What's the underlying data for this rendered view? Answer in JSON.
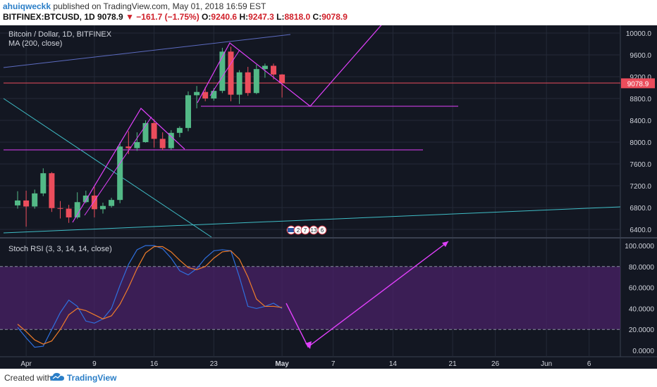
{
  "header": {
    "username": "ahuiqweckk",
    "published_text": "published on TradingView.com, May 01, 2018 16:59 EST",
    "symbol": "BITFINEX:BTCUSD, 1D",
    "last": "9078.9",
    "arrow": "▼",
    "change": "−161.7 (−1.75%)",
    "o_label": "O:",
    "o_val": "9240.6",
    "h_label": "H:",
    "h_val": "9247.3",
    "l_label": "L:",
    "l_val": "8818.0",
    "c_label": "C:",
    "c_val": "9078.9"
  },
  "footer": {
    "created_with": "Created with",
    "brand": "TradingView"
  },
  "colors": {
    "up": "#53b987",
    "down": "#eb4d5c",
    "bg": "#131722",
    "grid": "#242a38",
    "magenta": "#e040fb",
    "teal": "#3fbdc6",
    "blue_line": "#5c6bc0",
    "stoch_k": "#2f6fde",
    "stoch_d": "#ef7c2a",
    "band": "#4a2167"
  },
  "chart_data": [
    {
      "type": "candlestick",
      "title": "Bitcoin / Dollar, 1D, BITFINEX",
      "indicator": "MA (200, close)",
      "x_tick_labels": [
        "Apr",
        "9",
        "16",
        "23",
        "May",
        "7",
        "14",
        "21",
        "26",
        "Jun",
        "6"
      ],
      "y_tick_labels": [
        "10000.0",
        "9600.0",
        "9200.0",
        "8800.0",
        "8400.0",
        "8000.0",
        "7600.0",
        "7200.0",
        "6800.0",
        "6400.0"
      ],
      "ylim": [
        6250,
        10150
      ],
      "last_price_label": "9078.9",
      "event_badges": [
        "2",
        "7",
        "13",
        "6"
      ],
      "candles": [
        {
          "date": "2018-03-31",
          "o": 6840,
          "h": 7100,
          "l": 6780,
          "c": 6930
        },
        {
          "date": "2018-04-01",
          "o": 6930,
          "h": 7110,
          "l": 6450,
          "c": 6820
        },
        {
          "date": "2018-04-02",
          "o": 6820,
          "h": 7130,
          "l": 6780,
          "c": 7060
        },
        {
          "date": "2018-04-03",
          "o": 7060,
          "h": 7520,
          "l": 7010,
          "c": 7430
        },
        {
          "date": "2018-04-04",
          "o": 7430,
          "h": 7450,
          "l": 6720,
          "c": 6790
        },
        {
          "date": "2018-04-05",
          "o": 6790,
          "h": 6920,
          "l": 6600,
          "c": 6780
        },
        {
          "date": "2018-04-06",
          "o": 6780,
          "h": 6850,
          "l": 6520,
          "c": 6620
        },
        {
          "date": "2018-04-07",
          "o": 6620,
          "h": 7080,
          "l": 6590,
          "c": 6900
        },
        {
          "date": "2018-04-08",
          "o": 6900,
          "h": 7110,
          "l": 6880,
          "c": 7020
        },
        {
          "date": "2018-04-09",
          "o": 7020,
          "h": 7180,
          "l": 6620,
          "c": 6770
        },
        {
          "date": "2018-04-10",
          "o": 6770,
          "h": 6890,
          "l": 6690,
          "c": 6830
        },
        {
          "date": "2018-04-11",
          "o": 6830,
          "h": 6980,
          "l": 6800,
          "c": 6940
        },
        {
          "date": "2018-04-12",
          "o": 6940,
          "h": 8000,
          "l": 6880,
          "c": 7920
        },
        {
          "date": "2018-04-13",
          "o": 7920,
          "h": 8200,
          "l": 7780,
          "c": 7890
        },
        {
          "date": "2018-04-14",
          "o": 7890,
          "h": 8180,
          "l": 7840,
          "c": 8000
        },
        {
          "date": "2018-04-15",
          "o": 8000,
          "h": 8400,
          "l": 7990,
          "c": 8350
        },
        {
          "date": "2018-04-16",
          "o": 8350,
          "h": 8420,
          "l": 7900,
          "c": 8060
        },
        {
          "date": "2018-04-17",
          "o": 8060,
          "h": 8180,
          "l": 7850,
          "c": 7890
        },
        {
          "date": "2018-04-18",
          "o": 7890,
          "h": 8220,
          "l": 7860,
          "c": 8170
        },
        {
          "date": "2018-04-19",
          "o": 8170,
          "h": 8290,
          "l": 8090,
          "c": 8260
        },
        {
          "date": "2018-04-20",
          "o": 8260,
          "h": 8930,
          "l": 8200,
          "c": 8860
        },
        {
          "date": "2018-04-21",
          "o": 8860,
          "h": 9030,
          "l": 8620,
          "c": 8920
        },
        {
          "date": "2018-04-22",
          "o": 8920,
          "h": 9010,
          "l": 8750,
          "c": 8800
        },
        {
          "date": "2018-04-23",
          "o": 8800,
          "h": 8990,
          "l": 8760,
          "c": 8940
        },
        {
          "date": "2018-04-24",
          "o": 8940,
          "h": 9730,
          "l": 8900,
          "c": 9660
        },
        {
          "date": "2018-04-25",
          "o": 9660,
          "h": 9750,
          "l": 8750,
          "c": 8870
        },
        {
          "date": "2018-04-26",
          "o": 8870,
          "h": 9320,
          "l": 8700,
          "c": 9280
        },
        {
          "date": "2018-04-27",
          "o": 9280,
          "h": 9380,
          "l": 8850,
          "c": 8900
        },
        {
          "date": "2018-04-28",
          "o": 8900,
          "h": 9420,
          "l": 8880,
          "c": 9340
        },
        {
          "date": "2018-04-29",
          "o": 9340,
          "h": 9440,
          "l": 9180,
          "c": 9400
        },
        {
          "date": "2018-04-30",
          "o": 9400,
          "h": 9440,
          "l": 9150,
          "c": 9240
        },
        {
          "date": "2018-05-01",
          "o": 9240.6,
          "h": 9247.3,
          "l": 8818.0,
          "c": 9078.9
        }
      ]
    },
    {
      "type": "line",
      "title": "Stoch RSI (3, 3, 14, 14, close)",
      "y_tick_labels": [
        "100.0000",
        "80.0000",
        "60.0000",
        "40.0000",
        "20.0000",
        "0.0000"
      ],
      "ylim": [
        -5,
        103
      ],
      "band": [
        20,
        80
      ],
      "series": [
        {
          "values": [
            22,
            12,
            3,
            4,
            20,
            36,
            48,
            42,
            28,
            26,
            30,
            40,
            62,
            82,
            96,
            100,
            100,
            97,
            88,
            76,
            72,
            78,
            88,
            95,
            96,
            95,
            70,
            42,
            40,
            42,
            45,
            40
          ]
        },
        {
          "values": [
            25,
            18,
            10,
            6,
            9,
            20,
            34,
            40,
            38,
            34,
            30,
            33,
            44,
            60,
            78,
            93,
            99,
            99,
            94,
            86,
            79,
            77,
            80,
            88,
            94,
            95,
            87,
            70,
            49,
            42,
            42,
            41
          ]
        }
      ]
    }
  ]
}
